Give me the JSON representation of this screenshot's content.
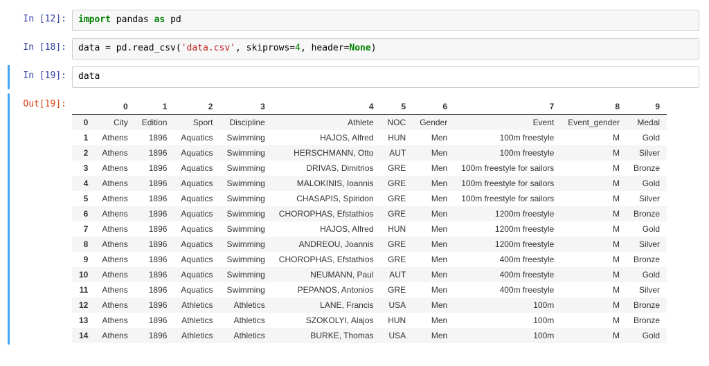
{
  "cells": [
    {
      "exec_count": 12,
      "prompt_in": "In [12]:",
      "code_tokens": [
        {
          "t": "import ",
          "c": "tok-kw"
        },
        {
          "t": "pandas ",
          "c": ""
        },
        {
          "t": "as ",
          "c": "tok-kw"
        },
        {
          "t": "pd",
          "c": ""
        }
      ]
    },
    {
      "exec_count": 18,
      "prompt_in": "In [18]:",
      "code_tokens": [
        {
          "t": "data ",
          "c": ""
        },
        {
          "t": "=",
          "c": ""
        },
        {
          "t": " pd.read_csv(",
          "c": ""
        },
        {
          "t": "'data.csv'",
          "c": "tok-str"
        },
        {
          "t": ", skiprows",
          "c": ""
        },
        {
          "t": "=",
          "c": ""
        },
        {
          "t": "4",
          "c": "tok-num"
        },
        {
          "t": ", header",
          "c": ""
        },
        {
          "t": "=",
          "c": ""
        },
        {
          "t": "None",
          "c": "tok-kw"
        },
        {
          "t": ")",
          "c": ""
        }
      ]
    },
    {
      "exec_count": 19,
      "prompt_in": "In [19]:",
      "prompt_out": "Out[19]:",
      "selected": true,
      "code_tokens": [
        {
          "t": "data",
          "c": ""
        }
      ],
      "dataframe": {
        "columns": [
          "0",
          "1",
          "2",
          "3",
          "4",
          "5",
          "6",
          "7",
          "8",
          "9"
        ],
        "rows": [
          {
            "idx": "0",
            "cells": [
              "City",
              "Edition",
              "Sport",
              "Discipline",
              "Athlete",
              "NOC",
              "Gender",
              "Event",
              "Event_gender",
              "Medal"
            ]
          },
          {
            "idx": "1",
            "cells": [
              "Athens",
              "1896",
              "Aquatics",
              "Swimming",
              "HAJOS, Alfred",
              "HUN",
              "Men",
              "100m freestyle",
              "M",
              "Gold"
            ]
          },
          {
            "idx": "2",
            "cells": [
              "Athens",
              "1896",
              "Aquatics",
              "Swimming",
              "HERSCHMANN, Otto",
              "AUT",
              "Men",
              "100m freestyle",
              "M",
              "Silver"
            ]
          },
          {
            "idx": "3",
            "cells": [
              "Athens",
              "1896",
              "Aquatics",
              "Swimming",
              "DRIVAS, Dimitrios",
              "GRE",
              "Men",
              "100m freestyle for sailors",
              "M",
              "Bronze"
            ]
          },
          {
            "idx": "4",
            "cells": [
              "Athens",
              "1896",
              "Aquatics",
              "Swimming",
              "MALOKINIS, Ioannis",
              "GRE",
              "Men",
              "100m freestyle for sailors",
              "M",
              "Gold"
            ]
          },
          {
            "idx": "5",
            "cells": [
              "Athens",
              "1896",
              "Aquatics",
              "Swimming",
              "CHASAPIS, Spiridon",
              "GRE",
              "Men",
              "100m freestyle for sailors",
              "M",
              "Silver"
            ]
          },
          {
            "idx": "6",
            "cells": [
              "Athens",
              "1896",
              "Aquatics",
              "Swimming",
              "CHOROPHAS, Efstathios",
              "GRE",
              "Men",
              "1200m freestyle",
              "M",
              "Bronze"
            ]
          },
          {
            "idx": "7",
            "cells": [
              "Athens",
              "1896",
              "Aquatics",
              "Swimming",
              "HAJOS, Alfred",
              "HUN",
              "Men",
              "1200m freestyle",
              "M",
              "Gold"
            ]
          },
          {
            "idx": "8",
            "cells": [
              "Athens",
              "1896",
              "Aquatics",
              "Swimming",
              "ANDREOU, Joannis",
              "GRE",
              "Men",
              "1200m freestyle",
              "M",
              "Silver"
            ]
          },
          {
            "idx": "9",
            "cells": [
              "Athens",
              "1896",
              "Aquatics",
              "Swimming",
              "CHOROPHAS, Efstathios",
              "GRE",
              "Men",
              "400m freestyle",
              "M",
              "Bronze"
            ]
          },
          {
            "idx": "10",
            "cells": [
              "Athens",
              "1896",
              "Aquatics",
              "Swimming",
              "NEUMANN, Paul",
              "AUT",
              "Men",
              "400m freestyle",
              "M",
              "Gold"
            ]
          },
          {
            "idx": "11",
            "cells": [
              "Athens",
              "1896",
              "Aquatics",
              "Swimming",
              "PEPANOS, Antonios",
              "GRE",
              "Men",
              "400m freestyle",
              "M",
              "Silver"
            ]
          },
          {
            "idx": "12",
            "cells": [
              "Athens",
              "1896",
              "Athletics",
              "Athletics",
              "LANE, Francis",
              "USA",
              "Men",
              "100m",
              "M",
              "Bronze"
            ]
          },
          {
            "idx": "13",
            "cells": [
              "Athens",
              "1896",
              "Athletics",
              "Athletics",
              "SZOKOLYI, Alajos",
              "HUN",
              "Men",
              "100m",
              "M",
              "Bronze"
            ]
          },
          {
            "idx": "14",
            "cells": [
              "Athens",
              "1896",
              "Athletics",
              "Athletics",
              "BURKE, Thomas",
              "USA",
              "Men",
              "100m",
              "M",
              "Gold"
            ]
          }
        ]
      }
    }
  ],
  "colors": {
    "prompt_in": "#303F9F",
    "prompt_out": "#D84315",
    "selected_border": "#42A5F5",
    "code_bg": "#f7f7f7",
    "zebra_bg": "#f5f5f5"
  }
}
